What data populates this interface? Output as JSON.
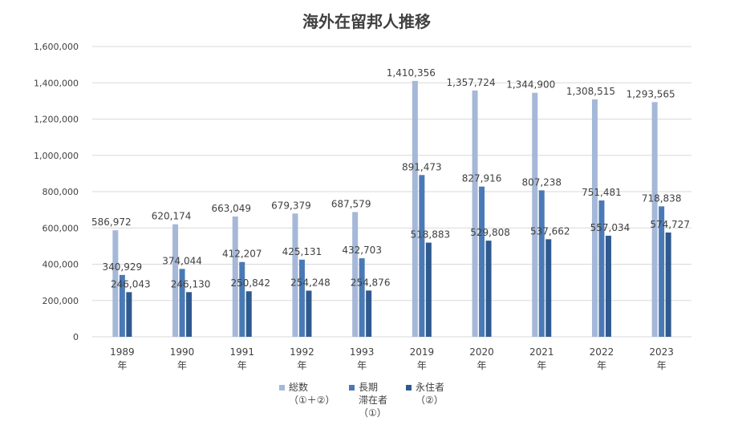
{
  "chart_data": {
    "type": "bar",
    "title": "海外在留邦人推移",
    "categories": [
      [
        "1989",
        "年"
      ],
      [
        "1990",
        "年"
      ],
      [
        "1991",
        "年"
      ],
      [
        "1992",
        "年"
      ],
      [
        "1993",
        "年"
      ],
      [
        "2019",
        "年"
      ],
      [
        "2020",
        "年"
      ],
      [
        "2021",
        "年"
      ],
      [
        "2022",
        "年"
      ],
      [
        "2023",
        "年"
      ]
    ],
    "series": [
      {
        "name": [
          "総数",
          "（①＋②）"
        ],
        "color": "#a5b8d8",
        "values": [
          586972,
          620174,
          663049,
          679379,
          687579,
          1410356,
          1357724,
          1344900,
          1308515,
          1293565
        ],
        "labels": [
          "586,972",
          "620,174",
          "663,049",
          "679,379",
          "687,579",
          "1,410,356",
          "1,357,724",
          "1,344,900",
          "1,308,515",
          "1,293,565"
        ]
      },
      {
        "name": [
          "長期",
          "滞在者",
          "（①）"
        ],
        "color": "#4a7ab5",
        "values": [
          340929,
          374044,
          412207,
          425131,
          432703,
          891473,
          827916,
          807238,
          751481,
          718838
        ],
        "labels": [
          "340,929",
          "374,044",
          "412,207",
          "425,131",
          "432,703",
          "891,473",
          "827,916",
          "807,238",
          "751,481",
          "718,838"
        ]
      },
      {
        "name": [
          "永住者",
          "（②）"
        ],
        "color": "#2f5a8f",
        "values": [
          246043,
          246130,
          250842,
          254248,
          254876,
          518883,
          529808,
          537662,
          557034,
          574727
        ],
        "labels": [
          "246,043",
          "246,130",
          "250,842",
          "254,248",
          "254,876",
          "518,883",
          "529,808",
          "537,662",
          "557,034",
          "574,727"
        ]
      }
    ],
    "ylim": [
      0,
      1600000
    ],
    "yticks": [
      0,
      200000,
      400000,
      600000,
      800000,
      1000000,
      1200000,
      1400000,
      1600000
    ],
    "ytick_labels": [
      "0",
      "200,000",
      "400,000",
      "600,000",
      "800,000",
      "1,000,000",
      "1,200,000",
      "1,400,000",
      "1,600,000"
    ],
    "grid": true,
    "legend": "bottom-center"
  }
}
